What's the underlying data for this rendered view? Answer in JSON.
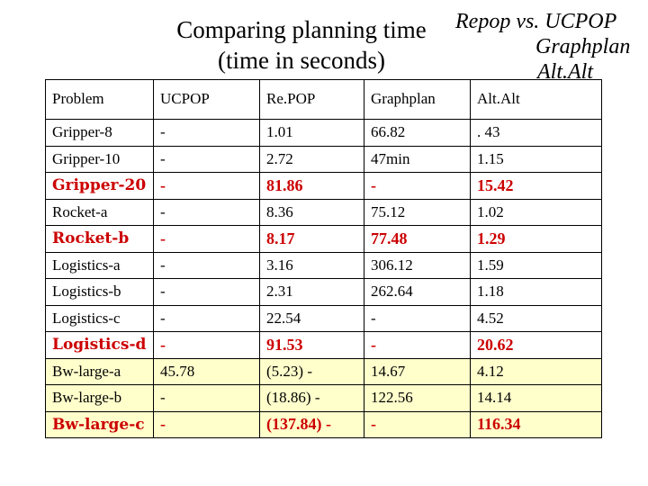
{
  "title": {
    "line1": "Comparing planning time",
    "line2": "(time in seconds)"
  },
  "legend": {
    "line1": "Repop vs.  UCPOP",
    "line2": "Graphplan",
    "line3": "Alt.Alt"
  },
  "colors": {
    "highlight_text": "#cc0000",
    "bw_row_background": "#ffffcc"
  },
  "table": {
    "headers": [
      "Problem",
      "UCPOP",
      "Re.POP",
      "Graphplan",
      "Alt.Alt"
    ],
    "rows": [
      {
        "cells": [
          "Gripper-8",
          "-",
          "1.01",
          "66.82",
          ". 43"
        ],
        "highlight": false,
        "bw": false
      },
      {
        "cells": [
          "Gripper-10",
          "-",
          "2.72",
          "47min",
          "1.15"
        ],
        "highlight": false,
        "bw": false
      },
      {
        "cells": [
          "Gripper-20",
          "-",
          "81.86",
          "-",
          "15.42"
        ],
        "highlight": true,
        "bw": false
      },
      {
        "cells": [
          "Rocket-a",
          "-",
          "8.36",
          "75.12",
          "1.02"
        ],
        "highlight": false,
        "bw": false
      },
      {
        "cells": [
          "Rocket-b",
          "-",
          "8.17",
          "77.48",
          "1.29"
        ],
        "highlight": true,
        "bw": false
      },
      {
        "cells": [
          "Logistics-a",
          "-",
          "3.16",
          "306.12",
          "1.59"
        ],
        "highlight": false,
        "bw": false
      },
      {
        "cells": [
          "Logistics-b",
          "-",
          "2.31",
          "262.64",
          "1.18"
        ],
        "highlight": false,
        "bw": false
      },
      {
        "cells": [
          "Logistics-c",
          "-",
          "22.54",
          "-",
          "4.52"
        ],
        "highlight": false,
        "bw": false
      },
      {
        "cells": [
          "Logistics-d",
          "-",
          "91.53",
          "-",
          "20.62"
        ],
        "highlight": true,
        "bw": false
      },
      {
        "cells": [
          "Bw-large-a",
          "45.78",
          "(5.23) -",
          "14.67",
          "4.12"
        ],
        "highlight": false,
        "bw": true
      },
      {
        "cells": [
          "Bw-large-b",
          "-",
          "(18.86) -",
          "122.56",
          "14.14"
        ],
        "highlight": false,
        "bw": true
      },
      {
        "cells": [
          "Bw-large-c",
          "-",
          "(137.84) -",
          "-",
          "116.34"
        ],
        "highlight": true,
        "bw": true
      }
    ]
  }
}
